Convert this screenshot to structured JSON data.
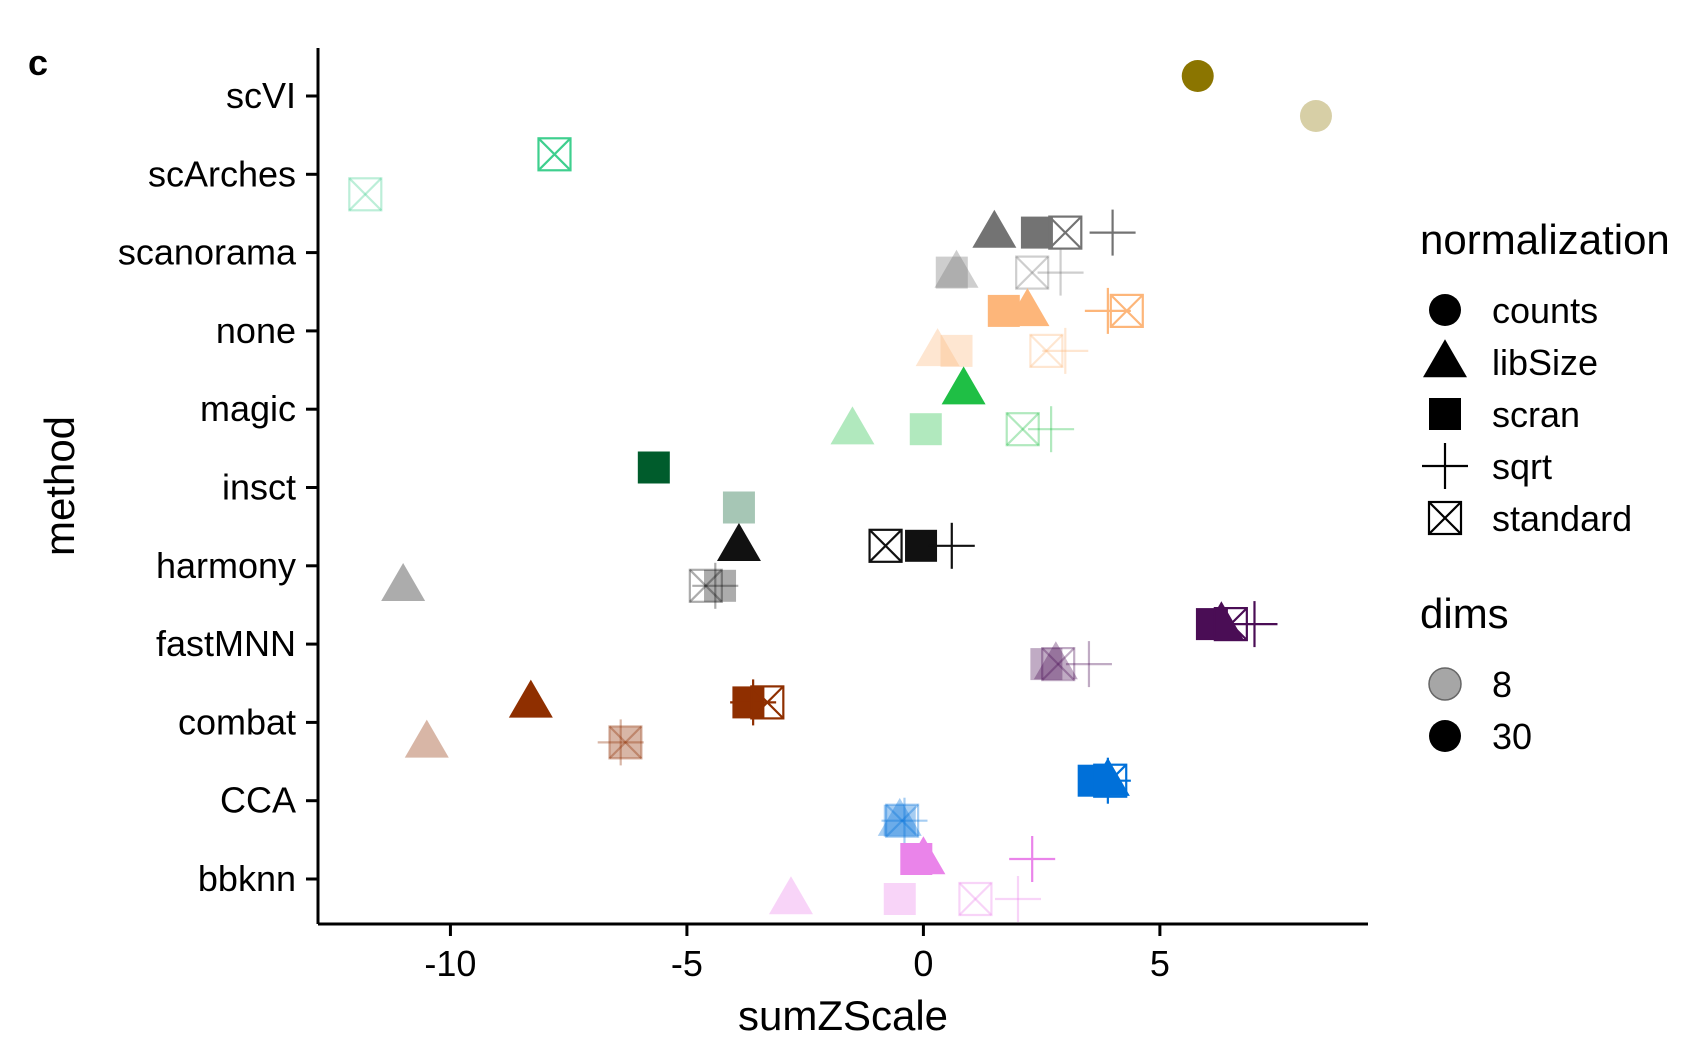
{
  "panel_label": "c",
  "chart_data": {
    "type": "scatter",
    "xlabel": "sumZScale",
    "ylabel": "method",
    "xlim": [
      -12.8,
      9.4
    ],
    "x_ticks": [
      -10,
      -5,
      0,
      5
    ],
    "x_tick_labels": [
      "-10",
      "-5",
      "0",
      "5"
    ],
    "categories": [
      "scVI",
      "scArches",
      "scanorama",
      "none",
      "magic",
      "insct",
      "harmony",
      "fastMNN",
      "combat",
      "CCA",
      "bbknn"
    ],
    "grid": false,
    "legend_position": "right",
    "legend": {
      "normalization": {
        "title": "normalization",
        "items": [
          {
            "label": "counts",
            "shape": "circle"
          },
          {
            "label": "libSize",
            "shape": "triangle"
          },
          {
            "label": "scran",
            "shape": "square"
          },
          {
            "label": "sqrt",
            "shape": "plus"
          },
          {
            "label": "standard",
            "shape": "boxcross"
          }
        ]
      },
      "dims": {
        "title": "dims",
        "items": [
          {
            "label": "8",
            "alpha": 0.35
          },
          {
            "label": "30",
            "alpha": 1.0
          }
        ]
      }
    },
    "method_colors": {
      "scVI": "#8b7500",
      "scArches": "#3ecf8e",
      "scanorama": "#737373",
      "none": "#fdb67a",
      "magic": "#1fbf45",
      "insct": "#005c2c",
      "harmony": "#111111",
      "fastMNN": "#4a0d55",
      "combat": "#8f2f00",
      "CCA": "#0070d9",
      "bbknn": "#ea84ea"
    },
    "points": [
      {
        "method": "scVI",
        "normalization": "counts",
        "dims": "30",
        "x": 5.8
      },
      {
        "method": "scVI",
        "normalization": "counts",
        "dims": "8",
        "x": 8.3
      },
      {
        "method": "scArches",
        "normalization": "standard",
        "dims": "30",
        "x": -7.8
      },
      {
        "method": "scArches",
        "normalization": "standard",
        "dims": "8",
        "x": -11.8
      },
      {
        "method": "scanorama",
        "normalization": "libSize",
        "dims": "30",
        "x": 1.5
      },
      {
        "method": "scanorama",
        "normalization": "scran",
        "dims": "30",
        "x": 2.4
      },
      {
        "method": "scanorama",
        "normalization": "standard",
        "dims": "30",
        "x": 3.0
      },
      {
        "method": "scanorama",
        "normalization": "sqrt",
        "dims": "30",
        "x": 4.0
      },
      {
        "method": "scanorama",
        "normalization": "libSize",
        "dims": "8",
        "x": 0.7
      },
      {
        "method": "scanorama",
        "normalization": "scran",
        "dims": "8",
        "x": 0.6
      },
      {
        "method": "scanorama",
        "normalization": "standard",
        "dims": "8",
        "x": 2.3
      },
      {
        "method": "scanorama",
        "normalization": "sqrt",
        "dims": "8",
        "x": 2.9
      },
      {
        "method": "none",
        "normalization": "scran",
        "dims": "30",
        "x": 1.7
      },
      {
        "method": "none",
        "normalization": "libSize",
        "dims": "30",
        "x": 2.2
      },
      {
        "method": "none",
        "normalization": "sqrt",
        "dims": "30",
        "x": 3.9
      },
      {
        "method": "none",
        "normalization": "standard",
        "dims": "30",
        "x": 4.3
      },
      {
        "method": "none",
        "normalization": "libSize",
        "dims": "8",
        "x": 0.3
      },
      {
        "method": "none",
        "normalization": "scran",
        "dims": "8",
        "x": 0.7
      },
      {
        "method": "none",
        "normalization": "standard",
        "dims": "8",
        "x": 2.6
      },
      {
        "method": "none",
        "normalization": "sqrt",
        "dims": "8",
        "x": 3.0
      },
      {
        "method": "magic",
        "normalization": "libSize",
        "dims": "30",
        "x": 0.85
      },
      {
        "method": "magic",
        "normalization": "libSize",
        "dims": "8",
        "x": -1.5
      },
      {
        "method": "magic",
        "normalization": "scran",
        "dims": "8",
        "x": 0.05
      },
      {
        "method": "magic",
        "normalization": "standard",
        "dims": "8",
        "x": 2.1
      },
      {
        "method": "magic",
        "normalization": "sqrt",
        "dims": "8",
        "x": 2.7
      },
      {
        "method": "insct",
        "normalization": "scran",
        "dims": "30",
        "x": -5.7
      },
      {
        "method": "insct",
        "normalization": "scran",
        "dims": "8",
        "x": -3.9
      },
      {
        "method": "harmony",
        "normalization": "libSize",
        "dims": "30",
        "x": -3.9
      },
      {
        "method": "harmony",
        "normalization": "standard",
        "dims": "30",
        "x": -0.8
      },
      {
        "method": "harmony",
        "normalization": "scran",
        "dims": "30",
        "x": -0.05
      },
      {
        "method": "harmony",
        "normalization": "sqrt",
        "dims": "30",
        "x": 0.6
      },
      {
        "method": "harmony",
        "normalization": "libSize",
        "dims": "8",
        "x": -11.0
      },
      {
        "method": "harmony",
        "normalization": "standard",
        "dims": "8",
        "x": -4.6
      },
      {
        "method": "harmony",
        "normalization": "scran",
        "dims": "8",
        "x": -4.3
      },
      {
        "method": "harmony",
        "normalization": "sqrt",
        "dims": "8",
        "x": -4.4
      },
      {
        "method": "fastMNN",
        "normalization": "scran",
        "dims": "30",
        "x": 6.1
      },
      {
        "method": "fastMNN",
        "normalization": "libSize",
        "dims": "30",
        "x": 6.3
      },
      {
        "method": "fastMNN",
        "normalization": "standard",
        "dims": "30",
        "x": 6.5
      },
      {
        "method": "fastMNN",
        "normalization": "sqrt",
        "dims": "30",
        "x": 7.0
      },
      {
        "method": "fastMNN",
        "normalization": "scran",
        "dims": "8",
        "x": 2.6
      },
      {
        "method": "fastMNN",
        "normalization": "libSize",
        "dims": "8",
        "x": 2.8
      },
      {
        "method": "fastMNN",
        "normalization": "standard",
        "dims": "8",
        "x": 2.85
      },
      {
        "method": "fastMNN",
        "normalization": "sqrt",
        "dims": "8",
        "x": 3.5
      },
      {
        "method": "combat",
        "normalization": "libSize",
        "dims": "30",
        "x": -8.3
      },
      {
        "method": "combat",
        "normalization": "scran",
        "dims": "30",
        "x": -3.7
      },
      {
        "method": "combat",
        "normalization": "sqrt",
        "dims": "30",
        "x": -3.6
      },
      {
        "method": "combat",
        "normalization": "standard",
        "dims": "30",
        "x": -3.3
      },
      {
        "method": "combat",
        "normalization": "libSize",
        "dims": "8",
        "x": -10.5
      },
      {
        "method": "combat",
        "normalization": "sqrt",
        "dims": "8",
        "x": -6.4
      },
      {
        "method": "combat",
        "normalization": "scran",
        "dims": "8",
        "x": -6.3
      },
      {
        "method": "combat",
        "normalization": "standard",
        "dims": "8",
        "x": -6.3
      },
      {
        "method": "CCA",
        "normalization": "scran",
        "dims": "30",
        "x": 3.6
      },
      {
        "method": "CCA",
        "normalization": "libSize",
        "dims": "30",
        "x": 3.9
      },
      {
        "method": "CCA",
        "normalization": "standard",
        "dims": "30",
        "x": 3.95
      },
      {
        "method": "CCA",
        "normalization": "sqrt",
        "dims": "30",
        "x": 3.9
      },
      {
        "method": "CCA",
        "normalization": "scran",
        "dims": "8",
        "x": -0.5
      },
      {
        "method": "CCA",
        "normalization": "libSize",
        "dims": "8",
        "x": -0.5
      },
      {
        "method": "CCA",
        "normalization": "standard",
        "dims": "8",
        "x": -0.45
      },
      {
        "method": "CCA",
        "normalization": "sqrt",
        "dims": "8",
        "x": -0.4
      },
      {
        "method": "bbknn",
        "normalization": "scran",
        "dims": "30",
        "x": -0.15
      },
      {
        "method": "bbknn",
        "normalization": "libSize",
        "dims": "30",
        "x": 0.0
      },
      {
        "method": "bbknn",
        "normalization": "sqrt",
        "dims": "30",
        "x": 2.3
      },
      {
        "method": "bbknn",
        "normalization": "libSize",
        "dims": "8",
        "x": -2.8
      },
      {
        "method": "bbknn",
        "normalization": "scran",
        "dims": "8",
        "x": -0.5
      },
      {
        "method": "bbknn",
        "normalization": "standard",
        "dims": "8",
        "x": 1.1
      },
      {
        "method": "bbknn",
        "normalization": "sqrt",
        "dims": "8",
        "x": 2.0
      }
    ]
  }
}
